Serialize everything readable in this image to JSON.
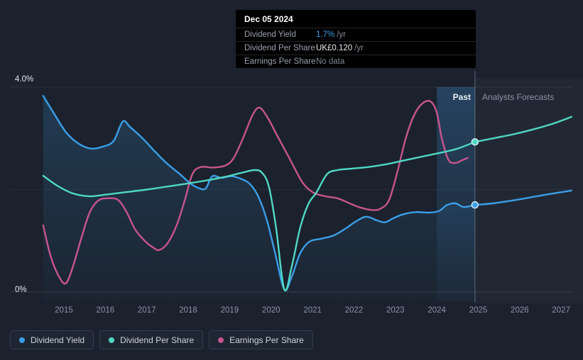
{
  "labels": {
    "past": "Past",
    "forecast": "Analysts Forecasts"
  },
  "axis": {
    "y_top": "4.0%",
    "y_bottom": "0%"
  },
  "tooltip": {
    "date": "Dec 05 2024",
    "rows": [
      {
        "label": "Dividend Yield",
        "value": "1.7%",
        "suffix": "/yr",
        "color": "#3b9ee8"
      },
      {
        "label": "Dividend Per Share",
        "value": "UK£0.120",
        "suffix": "/yr",
        "color": "#e6ebf1"
      },
      {
        "label": "Earnings Per Share",
        "value": "No data",
        "suffix": "",
        "color": "#7d8594"
      }
    ]
  },
  "legend": [
    {
      "label": "Dividend Yield",
      "color": "#3b9ee8"
    },
    {
      "label": "Dividend Per Share",
      "color": "#4fd8c4"
    },
    {
      "label": "Earnings Per Share",
      "color": "#c7548f"
    }
  ],
  "chart_data": {
    "type": "line",
    "x_axis": {
      "ticks": [
        2015,
        2016,
        2017,
        2018,
        2019,
        2020,
        2021,
        2022,
        2023,
        2024,
        2025,
        2026,
        2027
      ]
    },
    "y_axis": {
      "min": 0,
      "max": 4,
      "tick_labels": [
        "0%",
        "4.0%"
      ],
      "unit": "%"
    },
    "divider_year": 2024.92,
    "highlight_band": [
      2024.0,
      2024.92
    ],
    "regions": {
      "left_label": "Past",
      "right_label": "Analysts Forecasts"
    },
    "series": [
      {
        "name": "Earnings Per Share",
        "color": "#c7548f",
        "points": [
          [
            2014.5,
            1.3
          ],
          [
            2014.68,
            0.7
          ],
          [
            2014.88,
            0.3
          ],
          [
            2015.05,
            0.17
          ],
          [
            2015.22,
            0.5
          ],
          [
            2015.42,
            1.05
          ],
          [
            2015.62,
            1.55
          ],
          [
            2015.82,
            1.78
          ],
          [
            2016.05,
            1.83
          ],
          [
            2016.3,
            1.8
          ],
          [
            2016.5,
            1.58
          ],
          [
            2016.72,
            1.22
          ],
          [
            2016.95,
            1.0
          ],
          [
            2017.15,
            0.87
          ],
          [
            2017.3,
            0.82
          ],
          [
            2017.5,
            0.95
          ],
          [
            2017.72,
            1.3
          ],
          [
            2017.92,
            1.8
          ],
          [
            2018.1,
            2.3
          ],
          [
            2018.3,
            2.44
          ],
          [
            2018.6,
            2.43
          ],
          [
            2018.9,
            2.47
          ],
          [
            2019.1,
            2.62
          ],
          [
            2019.32,
            3.0
          ],
          [
            2019.55,
            3.45
          ],
          [
            2019.72,
            3.6
          ],
          [
            2019.92,
            3.4
          ],
          [
            2020.15,
            3.05
          ],
          [
            2020.45,
            2.6
          ],
          [
            2020.75,
            2.15
          ],
          [
            2021.0,
            1.95
          ],
          [
            2021.3,
            1.87
          ],
          [
            2021.6,
            1.83
          ],
          [
            2021.9,
            1.73
          ],
          [
            2022.15,
            1.65
          ],
          [
            2022.45,
            1.6
          ],
          [
            2022.65,
            1.63
          ],
          [
            2022.85,
            1.8
          ],
          [
            2023.05,
            2.35
          ],
          [
            2023.25,
            3.0
          ],
          [
            2023.45,
            3.45
          ],
          [
            2023.65,
            3.68
          ],
          [
            2023.85,
            3.72
          ],
          [
            2024.0,
            3.5
          ],
          [
            2024.12,
            3.0
          ],
          [
            2024.28,
            2.58
          ],
          [
            2024.45,
            2.52
          ],
          [
            2024.6,
            2.57
          ],
          [
            2024.75,
            2.62
          ]
        ],
        "forecast": [],
        "marker": null
      },
      {
        "name": "Dividend Yield",
        "color": "#3b9ee8",
        "area": true,
        "points": [
          [
            2014.5,
            3.83
          ],
          [
            2014.75,
            3.5
          ],
          [
            2015.05,
            3.12
          ],
          [
            2015.35,
            2.9
          ],
          [
            2015.65,
            2.8
          ],
          [
            2015.95,
            2.84
          ],
          [
            2016.2,
            2.95
          ],
          [
            2016.42,
            3.33
          ],
          [
            2016.6,
            3.22
          ],
          [
            2016.9,
            3.0
          ],
          [
            2017.2,
            2.74
          ],
          [
            2017.5,
            2.5
          ],
          [
            2017.8,
            2.3
          ],
          [
            2018.05,
            2.12
          ],
          [
            2018.25,
            2.03
          ],
          [
            2018.42,
            2.02
          ],
          [
            2018.58,
            2.26
          ],
          [
            2018.8,
            2.23
          ],
          [
            2019.05,
            2.26
          ],
          [
            2019.3,
            2.2
          ],
          [
            2019.5,
            2.1
          ],
          [
            2019.7,
            1.85
          ],
          [
            2019.9,
            1.4
          ],
          [
            2020.1,
            0.75
          ],
          [
            2020.32,
            0.05
          ],
          [
            2020.5,
            0.3
          ],
          [
            2020.7,
            0.75
          ],
          [
            2020.92,
            0.98
          ],
          [
            2021.2,
            1.04
          ],
          [
            2021.5,
            1.1
          ],
          [
            2021.8,
            1.24
          ],
          [
            2022.05,
            1.38
          ],
          [
            2022.3,
            1.47
          ],
          [
            2022.55,
            1.4
          ],
          [
            2022.75,
            1.36
          ],
          [
            2022.95,
            1.44
          ],
          [
            2023.2,
            1.52
          ],
          [
            2023.5,
            1.56
          ],
          [
            2023.8,
            1.55
          ],
          [
            2024.05,
            1.58
          ],
          [
            2024.25,
            1.7
          ],
          [
            2024.45,
            1.73
          ],
          [
            2024.65,
            1.66
          ],
          [
            2024.92,
            1.7
          ]
        ],
        "forecast": [
          [
            2024.92,
            1.7
          ],
          [
            2025.35,
            1.73
          ],
          [
            2025.85,
            1.79
          ],
          [
            2026.35,
            1.86
          ],
          [
            2026.85,
            1.93
          ],
          [
            2027.25,
            1.98
          ]
        ],
        "marker": [
          2024.92,
          1.7
        ],
        "marker_value": "1.7% /yr"
      },
      {
        "name": "Dividend Per Share",
        "color": "#4fd8c4",
        "points": [
          [
            2014.5,
            2.27
          ],
          [
            2014.85,
            2.07
          ],
          [
            2015.2,
            1.93
          ],
          [
            2015.6,
            1.87
          ],
          [
            2016.0,
            1.9
          ],
          [
            2016.5,
            1.95
          ],
          [
            2017.0,
            2.0
          ],
          [
            2017.5,
            2.06
          ],
          [
            2018.0,
            2.12
          ],
          [
            2018.45,
            2.18
          ],
          [
            2018.9,
            2.25
          ],
          [
            2019.3,
            2.33
          ],
          [
            2019.6,
            2.38
          ],
          [
            2019.78,
            2.33
          ],
          [
            2019.95,
            2.05
          ],
          [
            2020.12,
            1.25
          ],
          [
            2020.32,
            0.05
          ],
          [
            2020.5,
            0.5
          ],
          [
            2020.7,
            1.25
          ],
          [
            2020.9,
            1.72
          ],
          [
            2021.1,
            1.95
          ],
          [
            2021.35,
            2.3
          ],
          [
            2021.6,
            2.38
          ],
          [
            2021.95,
            2.41
          ],
          [
            2022.35,
            2.44
          ],
          [
            2022.75,
            2.49
          ],
          [
            2023.1,
            2.55
          ],
          [
            2023.45,
            2.61
          ],
          [
            2023.8,
            2.67
          ],
          [
            2024.15,
            2.73
          ],
          [
            2024.5,
            2.8
          ],
          [
            2024.92,
            2.93
          ]
        ],
        "forecast": [
          [
            2024.92,
            2.93
          ],
          [
            2025.35,
            3.0
          ],
          [
            2025.85,
            3.08
          ],
          [
            2026.35,
            3.18
          ],
          [
            2026.85,
            3.3
          ],
          [
            2027.25,
            3.42
          ]
        ],
        "marker": [
          2024.92,
          2.93
        ],
        "marker_value": "UK£0.120 /yr"
      }
    ]
  }
}
